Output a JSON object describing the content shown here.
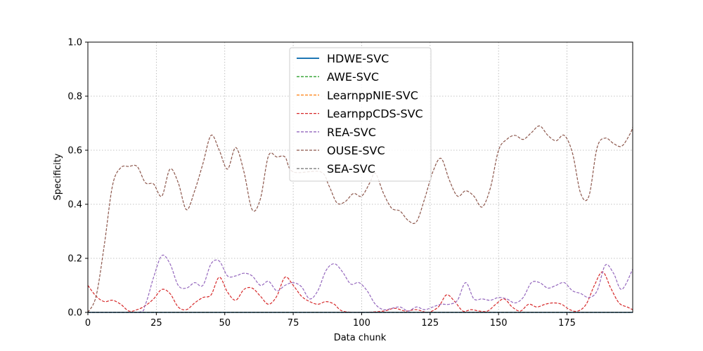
{
  "chart_data": {
    "type": "line",
    "xlabel": "Data chunk",
    "ylabel": "Specificity",
    "xlim": [
      0,
      199
    ],
    "ylim": [
      0,
      1.0
    ],
    "xticks": [
      0,
      25,
      50,
      75,
      100,
      125,
      150,
      175
    ],
    "yticks": [
      0.0,
      0.2,
      0.4,
      0.6,
      0.8,
      1.0
    ],
    "xtick_labels": [
      "0",
      "25",
      "50",
      "75",
      "100",
      "125",
      "150",
      "175"
    ],
    "ytick_labels": [
      "0.0",
      "0.2",
      "0.4",
      "0.6",
      "0.8",
      "1.0"
    ],
    "grid": true,
    "legend_position": "top-center",
    "series": [
      {
        "name": "HDWE-SVC",
        "color": "#1f77b4",
        "dash": "solid",
        "points": [
          [
            0,
            0
          ],
          [
            199,
            0
          ]
        ]
      },
      {
        "name": "AWE-SVC",
        "color": "#2ca02c",
        "dash": "dashed",
        "points": [
          [
            0,
            0
          ],
          [
            199,
            0
          ]
        ]
      },
      {
        "name": "LearnppNIE-SVC",
        "color": "#ff7f0e",
        "dash": "dashed",
        "points": [
          [
            0,
            0
          ],
          [
            199,
            0
          ]
        ]
      },
      {
        "name": "LearnppCDS-SVC",
        "color": "#d62728",
        "dash": "dashed",
        "points": [
          [
            0,
            0.1
          ],
          [
            3,
            0.06
          ],
          [
            6,
            0.04
          ],
          [
            9,
            0.045
          ],
          [
            12,
            0.03
          ],
          [
            15,
            0.005
          ],
          [
            18,
            0.01
          ],
          [
            21,
            0.025
          ],
          [
            24,
            0.05
          ],
          [
            27,
            0.085
          ],
          [
            30,
            0.07
          ],
          [
            33,
            0.02
          ],
          [
            36,
            0.01
          ],
          [
            39,
            0.035
          ],
          [
            42,
            0.055
          ],
          [
            45,
            0.065
          ],
          [
            48,
            0.13
          ],
          [
            51,
            0.075
          ],
          [
            54,
            0.045
          ],
          [
            57,
            0.085
          ],
          [
            60,
            0.09
          ],
          [
            63,
            0.06
          ],
          [
            66,
            0.03
          ],
          [
            69,
            0.06
          ],
          [
            72,
            0.13
          ],
          [
            75,
            0.1
          ],
          [
            78,
            0.06
          ],
          [
            81,
            0.04
          ],
          [
            84,
            0.03
          ],
          [
            87,
            0.04
          ],
          [
            90,
            0.03
          ],
          [
            93,
            0.005
          ],
          [
            100,
            0
          ],
          [
            108,
            0.005
          ],
          [
            112,
            0.015
          ],
          [
            116,
            0.005
          ],
          [
            120,
            0.01
          ],
          [
            124,
            0
          ],
          [
            128,
            0.02
          ],
          [
            131,
            0.065
          ],
          [
            134,
            0.04
          ],
          [
            137,
            0.005
          ],
          [
            140,
            0.01
          ],
          [
            143,
            0.005
          ],
          [
            146,
            0.005
          ],
          [
            149,
            0.03
          ],
          [
            152,
            0.05
          ],
          [
            155,
            0.02
          ],
          [
            158,
            0.005
          ],
          [
            161,
            0.03
          ],
          [
            164,
            0.02
          ],
          [
            167,
            0.03
          ],
          [
            170,
            0.035
          ],
          [
            173,
            0.03
          ],
          [
            176,
            0.01
          ],
          [
            179,
            0.005
          ],
          [
            182,
            0.03
          ],
          [
            185,
            0.1
          ],
          [
            188,
            0.15
          ],
          [
            191,
            0.09
          ],
          [
            194,
            0.035
          ],
          [
            197,
            0.02
          ],
          [
            199,
            0.01
          ]
        ]
      },
      {
        "name": "REA-SVC",
        "color": "#9467bd",
        "dash": "dashed",
        "points": [
          [
            0,
            0
          ],
          [
            18,
            0
          ],
          [
            21,
            0.03
          ],
          [
            24,
            0.13
          ],
          [
            27,
            0.21
          ],
          [
            30,
            0.18
          ],
          [
            33,
            0.1
          ],
          [
            36,
            0.09
          ],
          [
            39,
            0.11
          ],
          [
            42,
            0.1
          ],
          [
            45,
            0.18
          ],
          [
            48,
            0.19
          ],
          [
            51,
            0.135
          ],
          [
            54,
            0.135
          ],
          [
            57,
            0.145
          ],
          [
            60,
            0.135
          ],
          [
            63,
            0.1
          ],
          [
            66,
            0.115
          ],
          [
            69,
            0.08
          ],
          [
            72,
            0.1
          ],
          [
            75,
            0.11
          ],
          [
            78,
            0.095
          ],
          [
            81,
            0.05
          ],
          [
            84,
            0.08
          ],
          [
            87,
            0.155
          ],
          [
            90,
            0.18
          ],
          [
            93,
            0.15
          ],
          [
            96,
            0.105
          ],
          [
            99,
            0.11
          ],
          [
            102,
            0.08
          ],
          [
            105,
            0.03
          ],
          [
            108,
            0.01
          ],
          [
            111,
            0.015
          ],
          [
            114,
            0.02
          ],
          [
            117,
            0.005
          ],
          [
            120,
            0.02
          ],
          [
            123,
            0.01
          ],
          [
            126,
            0.02
          ],
          [
            129,
            0.03
          ],
          [
            132,
            0.03
          ],
          [
            135,
            0.045
          ],
          [
            138,
            0.11
          ],
          [
            141,
            0.05
          ],
          [
            144,
            0.05
          ],
          [
            147,
            0.045
          ],
          [
            150,
            0.055
          ],
          [
            153,
            0.05
          ],
          [
            156,
            0.035
          ],
          [
            159,
            0.055
          ],
          [
            162,
            0.11
          ],
          [
            165,
            0.11
          ],
          [
            168,
            0.09
          ],
          [
            171,
            0.1
          ],
          [
            174,
            0.11
          ],
          [
            177,
            0.08
          ],
          [
            180,
            0.07
          ],
          [
            183,
            0.055
          ],
          [
            186,
            0.08
          ],
          [
            189,
            0.175
          ],
          [
            192,
            0.145
          ],
          [
            195,
            0.085
          ],
          [
            199,
            0.16
          ]
        ]
      },
      {
        "name": "OUSE-SVC",
        "color": "#8c564b",
        "dash": "dashed",
        "points": [
          [
            0,
            0
          ],
          [
            3,
            0.06
          ],
          [
            6,
            0.25
          ],
          [
            9,
            0.47
          ],
          [
            12,
            0.535
          ],
          [
            15,
            0.54
          ],
          [
            18,
            0.54
          ],
          [
            21,
            0.48
          ],
          [
            24,
            0.475
          ],
          [
            27,
            0.43
          ],
          [
            30,
            0.53
          ],
          [
            33,
            0.48
          ],
          [
            36,
            0.38
          ],
          [
            39,
            0.45
          ],
          [
            42,
            0.55
          ],
          [
            45,
            0.655
          ],
          [
            48,
            0.6
          ],
          [
            51,
            0.53
          ],
          [
            54,
            0.61
          ],
          [
            57,
            0.52
          ],
          [
            60,
            0.38
          ],
          [
            63,
            0.42
          ],
          [
            66,
            0.58
          ],
          [
            69,
            0.575
          ],
          [
            72,
            0.575
          ],
          [
            75,
            0.52
          ],
          [
            85,
            0.52
          ],
          [
            88,
            0.47
          ],
          [
            91,
            0.405
          ],
          [
            94,
            0.41
          ],
          [
            97,
            0.44
          ],
          [
            100,
            0.43
          ],
          [
            103,
            0.48
          ],
          [
            105,
            0.515
          ],
          [
            108,
            0.44
          ],
          [
            111,
            0.385
          ],
          [
            114,
            0.375
          ],
          [
            117,
            0.34
          ],
          [
            120,
            0.335
          ],
          [
            123,
            0.42
          ],
          [
            126,
            0.52
          ],
          [
            129,
            0.57
          ],
          [
            132,
            0.49
          ],
          [
            135,
            0.43
          ],
          [
            138,
            0.45
          ],
          [
            141,
            0.43
          ],
          [
            144,
            0.39
          ],
          [
            147,
            0.46
          ],
          [
            150,
            0.6
          ],
          [
            153,
            0.64
          ],
          [
            156,
            0.655
          ],
          [
            159,
            0.64
          ],
          [
            162,
            0.665
          ],
          [
            165,
            0.69
          ],
          [
            168,
            0.655
          ],
          [
            171,
            0.635
          ],
          [
            174,
            0.655
          ],
          [
            177,
            0.59
          ],
          [
            180,
            0.44
          ],
          [
            183,
            0.43
          ],
          [
            186,
            0.61
          ],
          [
            189,
            0.645
          ],
          [
            192,
            0.625
          ],
          [
            195,
            0.615
          ],
          [
            198,
            0.66
          ],
          [
            199,
            0.685
          ]
        ]
      },
      {
        "name": "SEA-SVC",
        "color": "#7f7f7f",
        "dash": "dashed",
        "points": [
          [
            0,
            0
          ],
          [
            199,
            0
          ]
        ]
      }
    ]
  }
}
